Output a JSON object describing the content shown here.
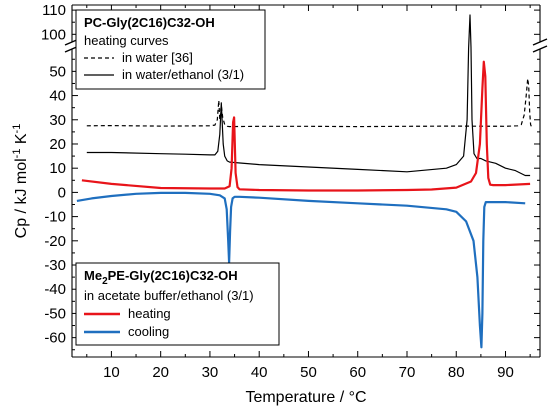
{
  "chart_data": {
    "type": "line",
    "xlabel": "Temperature / °C",
    "ylabel_parts": [
      "Cp / kJ mol",
      "-1",
      " K",
      "-1"
    ],
    "xlim": [
      2,
      97
    ],
    "ylim": [
      -68,
      112
    ],
    "y_break": [
      58,
      96
    ],
    "x_ticks": [
      10,
      20,
      30,
      40,
      50,
      60,
      70,
      80,
      90
    ],
    "y_ticks": [
      -60,
      -50,
      -40,
      -30,
      -20,
      -10,
      0,
      10,
      20,
      30,
      40,
      50,
      100,
      110
    ],
    "legend_top": {
      "title": "PC-Gly(2C16)C32-OH",
      "subtitle": "heating curves",
      "entries": [
        {
          "label": "in water [36]",
          "series": "water"
        },
        {
          "label": "in water/ethanol (3/1)",
          "series": "water_ethanol"
        }
      ]
    },
    "legend_bottom": {
      "title_parts": [
        "Me",
        "2",
        "PE-Gly(2C16)C32-OH"
      ],
      "subtitle": "in acetate buffer/ethanol (3/1)",
      "entries": [
        {
          "label": "heating",
          "series": "heating"
        },
        {
          "label": "cooling",
          "series": "cooling"
        }
      ]
    },
    "series": [
      {
        "id": "water",
        "color": "#000000",
        "style": "dashed",
        "x": [
          5,
          10,
          20,
          30,
          31,
          31.5,
          31.8,
          32.0,
          32.3,
          32.6,
          33.0,
          33.5,
          34,
          40,
          50,
          60,
          70,
          80,
          90,
          92.5,
          93.2,
          93.8,
          94.2,
          94.5,
          94.7,
          94.9,
          95.1,
          95.3
        ],
        "y": [
          27.5,
          27.6,
          27.4,
          27.5,
          27.8,
          30,
          38,
          30,
          36,
          31,
          28,
          27.3,
          27.2,
          27.3,
          27.3,
          27.2,
          27.3,
          27.4,
          27.3,
          27.5,
          28,
          32,
          40,
          47,
          44,
          33,
          28,
          27
        ]
      },
      {
        "id": "water_ethanol",
        "color": "#000000",
        "style": "solid",
        "x": [
          5,
          10,
          20,
          25,
          30,
          31,
          31.6,
          32.0,
          32.3,
          32.7,
          33.0,
          33.5,
          34,
          40,
          50,
          60,
          70,
          78,
          80,
          81.5,
          82.2,
          82.5,
          82.8,
          83.0,
          83.2,
          83.6,
          84.2,
          85,
          86,
          88,
          90,
          92,
          94,
          95
        ],
        "y": [
          16.5,
          16.5,
          16,
          15.8,
          15.5,
          15.5,
          17,
          24,
          37,
          20,
          15,
          13,
          12.5,
          11.5,
          10.5,
          9.5,
          8.5,
          10,
          11.5,
          15,
          30,
          75,
          108,
          80,
          30,
          16,
          14,
          14,
          13,
          12,
          10,
          9,
          7,
          7
        ]
      },
      {
        "id": "heating",
        "color": "#e8141a",
        "style": "solid",
        "x": [
          4,
          10,
          20,
          30,
          33,
          34,
          34.4,
          34.7,
          34.9,
          35.2,
          35.6,
          36,
          40,
          50,
          60,
          70,
          75,
          80,
          83,
          84,
          84.8,
          85.3,
          85.6,
          85.9,
          86.2,
          86.5,
          86.9,
          87.5,
          90,
          95
        ],
        "y": [
          5,
          3.5,
          1.8,
          1.6,
          1.6,
          2.5,
          10,
          29,
          31,
          8,
          2.2,
          1.3,
          1,
          0.8,
          0.8,
          1,
          1.2,
          2,
          4.5,
          8,
          20,
          43,
          54,
          48,
          20,
          6,
          3.2,
          3,
          3,
          3.5
        ]
      },
      {
        "id": "cooling",
        "color": "#1f6fbf",
        "style": "solid",
        "x": [
          3,
          6,
          10,
          15,
          20,
          25,
          30,
          32,
          33,
          33.4,
          33.7,
          33.9,
          34.1,
          34.3,
          34.6,
          35,
          36,
          40,
          50,
          60,
          70,
          78,
          80,
          82,
          83.5,
          84.3,
          84.8,
          85.1,
          85.3,
          85.5,
          85.7,
          86,
          86.5,
          88,
          90,
          94
        ],
        "y": [
          -3.5,
          -2.5,
          -1.5,
          -0.6,
          -0.2,
          -0.2,
          -0.6,
          -1.2,
          -2.5,
          -7,
          -20,
          -29,
          -16,
          -6,
          -2.5,
          -1.8,
          -1.8,
          -2.2,
          -3.5,
          -4.5,
          -5.5,
          -7,
          -8,
          -12,
          -20,
          -35,
          -55,
          -64,
          -50,
          -20,
          -6,
          -4,
          -4,
          -4,
          -4,
          -4.5
        ]
      }
    ]
  }
}
